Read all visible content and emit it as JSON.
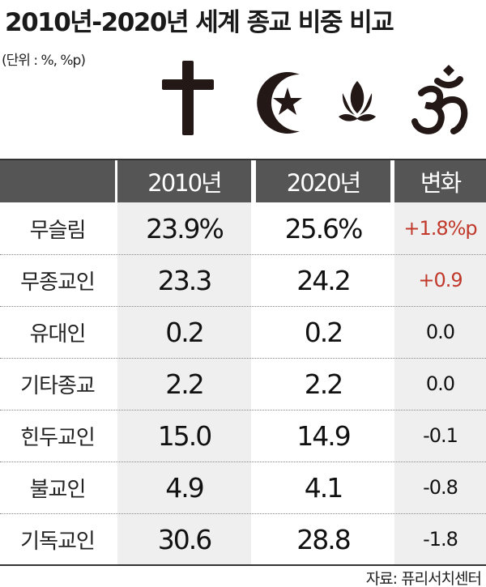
{
  "title": "2010년-2020년 세계 종교 비중 비교",
  "unit": "(단위 : %, %p)",
  "icons": [
    "cross-icon",
    "crescent-star-icon",
    "lotus-icon",
    "om-icon"
  ],
  "colors": {
    "header_bg": "#555555",
    "cell_bg": "#efefef",
    "positive_change": "#c0392b"
  },
  "headers": [
    "",
    "2010년",
    "2020년",
    "변화"
  ],
  "rows": [
    {
      "label": "무슬림",
      "y2010": "23.9%",
      "y2020": "25.6%",
      "change": "+1.8%p",
      "positive": true
    },
    {
      "label": "무종교인",
      "y2010": "23.3",
      "y2020": "24.2",
      "change": "+0.9",
      "positive": true
    },
    {
      "label": "유대인",
      "y2010": "0.2",
      "y2020": "0.2",
      "change": "0.0",
      "positive": false
    },
    {
      "label": "기타종교",
      "y2010": "2.2",
      "y2020": "2.2",
      "change": "0.0",
      "positive": false
    },
    {
      "label": "힌두교인",
      "y2010": "15.0",
      "y2020": "14.9",
      "change": "-0.1",
      "positive": false
    },
    {
      "label": "불교인",
      "y2010": "4.9",
      "y2020": "4.1",
      "change": "-0.8",
      "positive": false
    },
    {
      "label": "기독교인",
      "y2010": "30.6",
      "y2020": "28.8",
      "change": "-1.8",
      "positive": false
    }
  ],
  "source": "자료: 퓨리서치센터"
}
